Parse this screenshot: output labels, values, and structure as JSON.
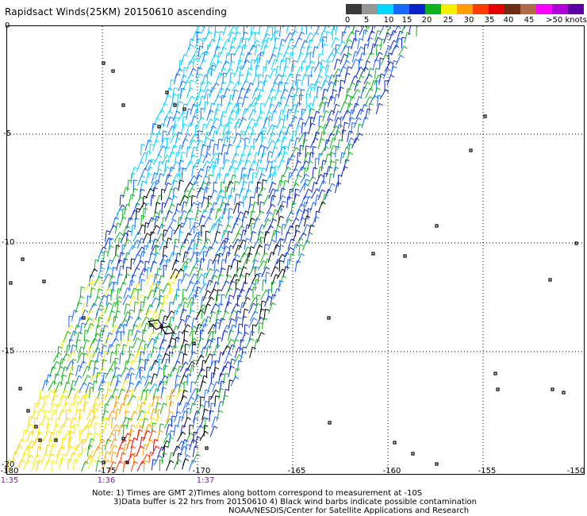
{
  "title": "Rapidsact Winds(25KM) 20150610 ascending",
  "colorbar": {
    "colors": [
      "#3a3a3a",
      "#969696",
      "#00d8ff",
      "#1a66ff",
      "#0a22c8",
      "#12b01e",
      "#f2f200",
      "#ff9e00",
      "#ff3c00",
      "#e60000",
      "#6b2d14",
      "#b06a4a",
      "#ff00ff",
      "#b000d8",
      "#5a00a0"
    ],
    "labels": [
      "0",
      "5",
      "10",
      "15",
      "20",
      "25",
      "30",
      "35",
      "40",
      "45",
      ">50 knots"
    ]
  },
  "map": {
    "lat_labels": [
      "0",
      "-5",
      "-10",
      "-15",
      "-20"
    ],
    "lon_labels": [
      "-180",
      "-175",
      "-170",
      "-165",
      "-160",
      "-155",
      "-150"
    ],
    "time_labels": [
      "1:35",
      "1:36",
      "1:37"
    ]
  },
  "notes": {
    "line1": "Note: 1) Times are GMT 2)Times along bottom correspond to measurement at -10S",
    "line2": "3)Data buffer is 22 hrs from 20150610 4) Black wind barbs indicate possible contamination",
    "line3": "NOAA/NESDIS/Center for Satellite Applications and Research"
  }
}
